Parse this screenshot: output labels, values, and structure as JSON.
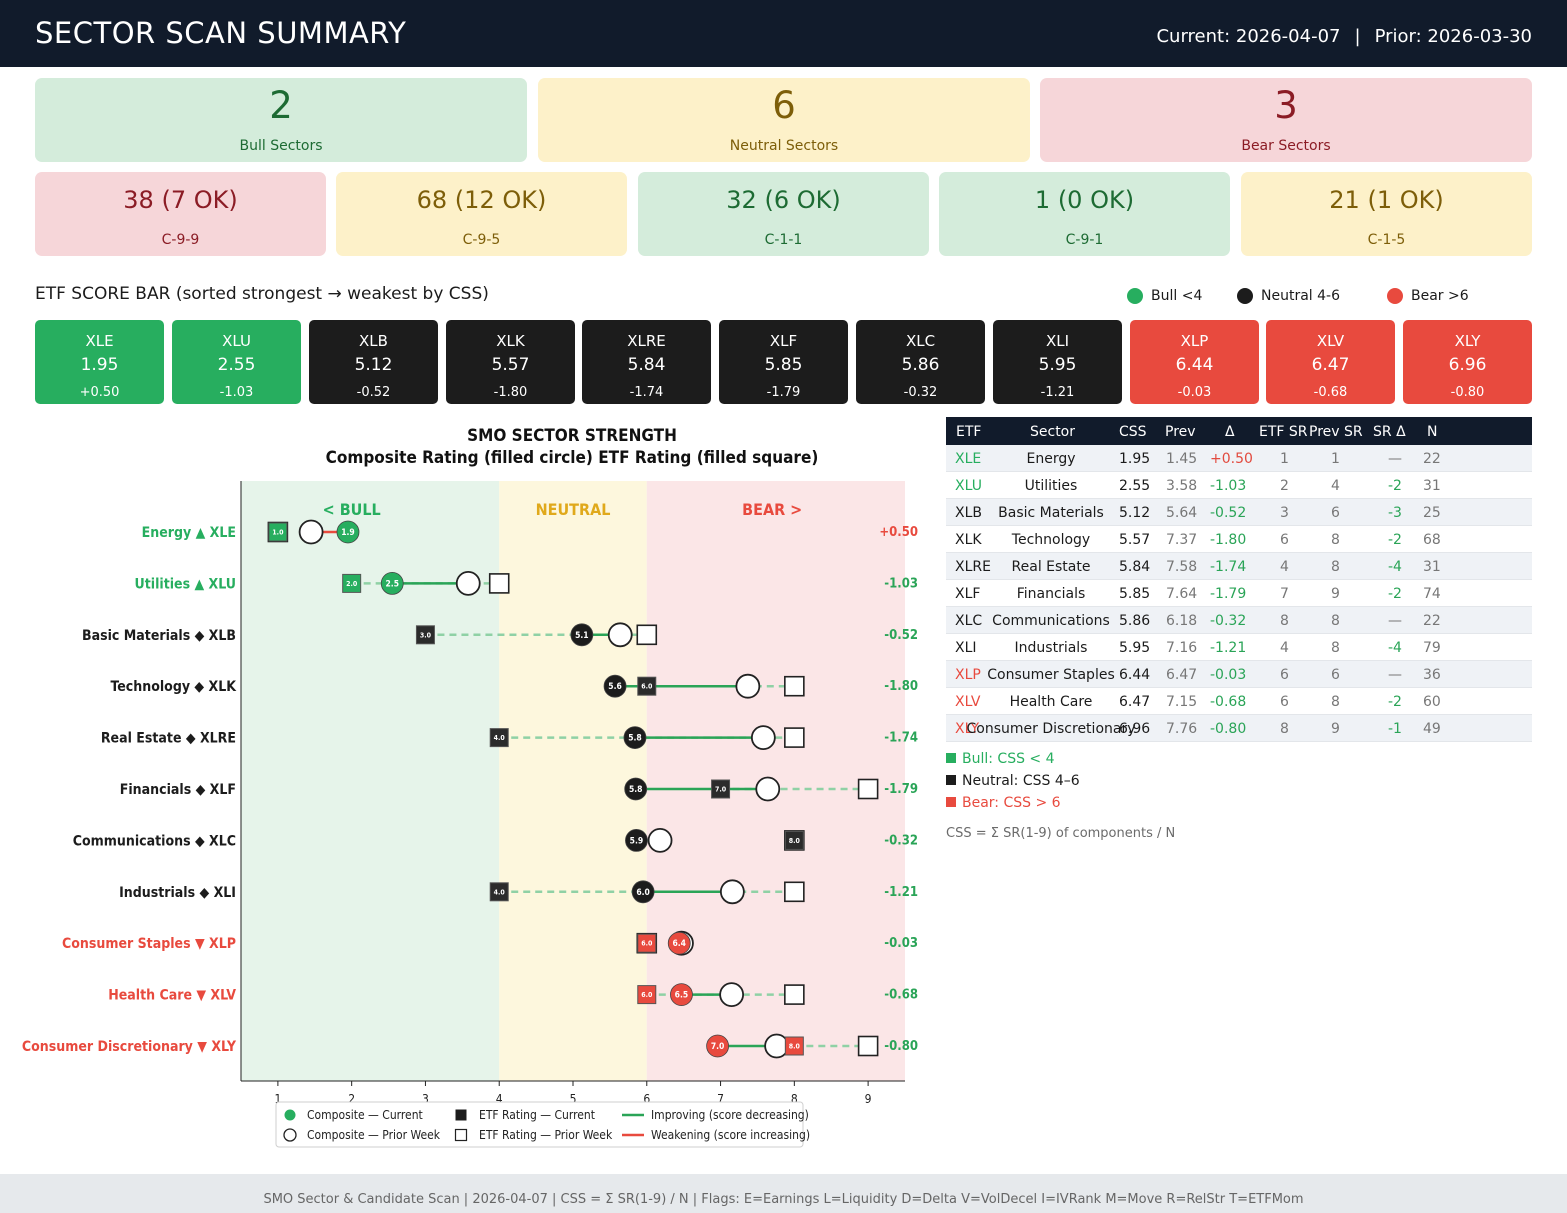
{
  "header": {
    "title": "SECTOR SCAN SUMMARY",
    "current": "Current: 2026-04-07",
    "separator": "|",
    "prior": "Prior: 2026-03-30"
  },
  "summary": [
    {
      "value": "2",
      "label": "Bull Sectors"
    },
    {
      "value": "6",
      "label": "Neutral Sectors"
    },
    {
      "value": "3",
      "label": "Bear Sectors"
    }
  ],
  "categories": [
    {
      "value": "38 (7 OK)",
      "label": "C-9-9"
    },
    {
      "value": "68 (12 OK)",
      "label": "C-9-5"
    },
    {
      "value": "32 (6 OK)",
      "label": "C-1-1"
    },
    {
      "value": "1 (0 OK)",
      "label": "C-9-1"
    },
    {
      "value": "21 (1 OK)",
      "label": "C-1-5"
    }
  ],
  "scorebar": {
    "title": "ETF SCORE BAR  (sorted strongest → weakest by CSS)",
    "legend": [
      "Bull <4",
      "Neutral 4-6",
      "Bear >6"
    ],
    "items": [
      {
        "etf": "XLE",
        "score": "1.95",
        "delta": "+0.50",
        "status": "bull"
      },
      {
        "etf": "XLU",
        "score": "2.55",
        "delta": "-1.03",
        "status": "bull"
      },
      {
        "etf": "XLB",
        "score": "5.12",
        "delta": "-0.52",
        "status": "neutral"
      },
      {
        "etf": "XLK",
        "score": "5.57",
        "delta": "-1.80",
        "status": "neutral"
      },
      {
        "etf": "XLRE",
        "score": "5.84",
        "delta": "-1.74",
        "status": "neutral"
      },
      {
        "etf": "XLF",
        "score": "5.85",
        "delta": "-1.79",
        "status": "neutral"
      },
      {
        "etf": "XLC",
        "score": "5.86",
        "delta": "-0.32",
        "status": "neutral"
      },
      {
        "etf": "XLI",
        "score": "5.95",
        "delta": "-1.21",
        "status": "neutral"
      },
      {
        "etf": "XLP",
        "score": "6.44",
        "delta": "-0.03",
        "status": "bear"
      },
      {
        "etf": "XLV",
        "score": "6.47",
        "delta": "-0.68",
        "status": "bear"
      },
      {
        "etf": "XLY",
        "score": "6.96",
        "delta": "-0.80",
        "status": "bear"
      }
    ]
  },
  "chart_data": {
    "type": "scatter",
    "title": "SMO SECTOR STRENGTH",
    "subtitle": "Composite Rating (filled circle)   ETF Rating (filled square)",
    "zones": [
      "< BULL",
      "NEUTRAL",
      "BEAR >"
    ],
    "xlim": [
      0.5,
      9.5
    ],
    "xticks": [
      1,
      2,
      3,
      4,
      5,
      6,
      7,
      8,
      9
    ],
    "rows": [
      {
        "label": "Energy ▲ XLE",
        "status": "bull",
        "cur": 1.95,
        "curLabel": "1.9",
        "prev": 1.45,
        "etfCur": 1,
        "etfCurLabel": "1.0",
        "etfPrev": 1,
        "delta": "+0.50"
      },
      {
        "label": "Utilities ▲ XLU",
        "status": "bull",
        "cur": 2.55,
        "curLabel": "2.5",
        "prev": 3.58,
        "etfCur": 2,
        "etfCurLabel": "2.0",
        "etfPrev": 4,
        "delta": "-1.03"
      },
      {
        "label": "Basic Materials ◆ XLB",
        "status": "neutral",
        "cur": 5.12,
        "curLabel": "5.1",
        "prev": 5.64,
        "etfCur": 3,
        "etfCurLabel": "3.0",
        "etfPrev": 6,
        "delta": "-0.52"
      },
      {
        "label": "Technology ◆ XLK",
        "status": "neutral",
        "cur": 5.57,
        "curLabel": "5.6",
        "prev": 7.37,
        "etfCur": 6,
        "etfCurLabel": "6.0",
        "etfPrev": 8,
        "delta": "-1.80"
      },
      {
        "label": "Real Estate ◆ XLRE",
        "status": "neutral",
        "cur": 5.84,
        "curLabel": "5.8",
        "prev": 7.58,
        "etfCur": 4,
        "etfCurLabel": "4.0",
        "etfPrev": 8,
        "delta": "-1.74"
      },
      {
        "label": "Financials ◆ XLF",
        "status": "neutral",
        "cur": 5.85,
        "curLabel": "5.8",
        "prev": 7.64,
        "etfCur": 7,
        "etfCurLabel": "7.0",
        "etfPrev": 9,
        "delta": "-1.79"
      },
      {
        "label": "Communications ◆ XLC",
        "status": "neutral",
        "cur": 5.86,
        "curLabel": "5.9",
        "prev": 6.18,
        "etfCur": 8,
        "etfCurLabel": "8.0",
        "etfPrev": 8,
        "delta": "-0.32"
      },
      {
        "label": "Industrials ◆ XLI",
        "status": "neutral",
        "cur": 5.95,
        "curLabel": "6.0",
        "prev": 7.16,
        "etfCur": 4,
        "etfCurLabel": "4.0",
        "etfPrev": 8,
        "delta": "-1.21"
      },
      {
        "label": "Consumer Staples ▼ XLP",
        "status": "bear",
        "cur": 6.44,
        "curLabel": "6.4",
        "prev": 6.47,
        "etfCur": 6,
        "etfCurLabel": "6.0",
        "etfPrev": 6,
        "delta": "-0.03"
      },
      {
        "label": "Health Care ▼ XLV",
        "status": "bear",
        "cur": 6.47,
        "curLabel": "6.5",
        "prev": 7.15,
        "etfCur": 6,
        "etfCurLabel": "6.0",
        "etfPrev": 8,
        "delta": "-0.68"
      },
      {
        "label": "Consumer Discretionary ▼ XLY",
        "status": "bear",
        "cur": 6.96,
        "curLabel": "7.0",
        "prev": 7.76,
        "etfCur": 8,
        "etfCurLabel": "8.0",
        "etfPrev": 9,
        "delta": "-0.80"
      }
    ],
    "legend": [
      "Composite — Current",
      "ETF Rating — Current",
      "Improving (score decreasing)",
      "Composite — Prior Week",
      "ETF Rating — Prior Week",
      "Weakening (score increasing)"
    ]
  },
  "table": {
    "headers": [
      "ETF",
      "Sector",
      "CSS",
      "Prev",
      "Δ",
      "ETF SR",
      "Prev SR",
      "SR Δ",
      "N"
    ],
    "rows": [
      {
        "etf": "XLE",
        "sector": "Energy",
        "css": "1.95",
        "prev": "1.45",
        "delta": "+0.50",
        "sr": "1",
        "prevSr": "1",
        "srDelta": "—",
        "n": "22",
        "status": "bull"
      },
      {
        "etf": "XLU",
        "sector": "Utilities",
        "css": "2.55",
        "prev": "3.58",
        "delta": "-1.03",
        "sr": "2",
        "prevSr": "4",
        "srDelta": "-2",
        "n": "31",
        "status": "bull"
      },
      {
        "etf": "XLB",
        "sector": "Basic Materials",
        "css": "5.12",
        "prev": "5.64",
        "delta": "-0.52",
        "sr": "3",
        "prevSr": "6",
        "srDelta": "-3",
        "n": "25",
        "status": "neutral"
      },
      {
        "etf": "XLK",
        "sector": "Technology",
        "css": "5.57",
        "prev": "7.37",
        "delta": "-1.80",
        "sr": "6",
        "prevSr": "8",
        "srDelta": "-2",
        "n": "68",
        "status": "neutral"
      },
      {
        "etf": "XLRE",
        "sector": "Real Estate",
        "css": "5.84",
        "prev": "7.58",
        "delta": "-1.74",
        "sr": "4",
        "prevSr": "8",
        "srDelta": "-4",
        "n": "31",
        "status": "neutral"
      },
      {
        "etf": "XLF",
        "sector": "Financials",
        "css": "5.85",
        "prev": "7.64",
        "delta": "-1.79",
        "sr": "7",
        "prevSr": "9",
        "srDelta": "-2",
        "n": "74",
        "status": "neutral"
      },
      {
        "etf": "XLC",
        "sector": "Communications",
        "css": "5.86",
        "prev": "6.18",
        "delta": "-0.32",
        "sr": "8",
        "prevSr": "8",
        "srDelta": "—",
        "n": "22",
        "status": "neutral"
      },
      {
        "etf": "XLI",
        "sector": "Industrials",
        "css": "5.95",
        "prev": "7.16",
        "delta": "-1.21",
        "sr": "4",
        "prevSr": "8",
        "srDelta": "-4",
        "n": "79",
        "status": "neutral"
      },
      {
        "etf": "XLP",
        "sector": "Consumer Staples",
        "css": "6.44",
        "prev": "6.47",
        "delta": "-0.03",
        "sr": "6",
        "prevSr": "6",
        "srDelta": "—",
        "n": "36",
        "status": "bear"
      },
      {
        "etf": "XLV",
        "sector": "Health Care",
        "css": "6.47",
        "prev": "7.15",
        "delta": "-0.68",
        "sr": "6",
        "prevSr": "8",
        "srDelta": "-2",
        "n": "60",
        "status": "bear"
      },
      {
        "etf": "XLY",
        "sector": "Consumer Discretionary",
        "css": "6.96",
        "prev": "7.76",
        "delta": "-0.80",
        "sr": "8",
        "prevSr": "9",
        "srDelta": "-1",
        "n": "49",
        "status": "bear"
      }
    ],
    "legend": [
      "Bull: CSS < 4",
      "Neutral: CSS 4–6",
      "Bear: CSS > 6"
    ],
    "note": "CSS = Σ SR(1-9) of components / N"
  },
  "footer": "SMO Sector & Candidate Scan  |  2026-04-07  |  CSS = Σ SR(1-9) / N  |  Flags: E=Earnings  L=Liquidity  D=Delta  V=VolDecel  I=IVRank  M=Move  R=RelStr  T=ETFMom",
  "colors": {
    "bull": "#27ae5f",
    "neutral": "#1c1c1c",
    "bear": "#e84a3e",
    "header": "#111b2b"
  }
}
